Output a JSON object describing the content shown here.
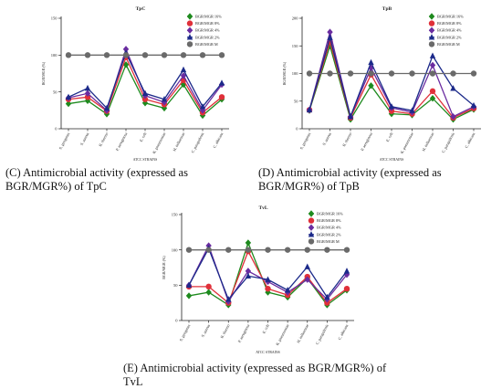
{
  "figure": {
    "captions": [
      "(C) Antimicrobial activity (expressed as BGR/MGR%) of TpC",
      "(D) Antimicrobial activity (expressed as BGR/MGR%) of TpB",
      "(E) Antimicrobial activity (expressed as BGR/MGR%) of TvL"
    ]
  },
  "chart_data": [
    {
      "type": "line",
      "title": "TpC",
      "ylabel": "BGR/MGR (%)",
      "xlabel": "ATCC STRAINS",
      "ylim": [
        0,
        150
      ],
      "yticks": [
        0,
        50,
        100,
        150
      ],
      "grid": false,
      "legend_position": "top-right",
      "categories": [
        "S. pyogenes",
        "S. aureus",
        "B. thermo",
        "P. aeruginosa",
        "E. coli",
        "K. pneumoniae",
        "H. influenzae",
        "C. parapsilosis",
        "C. albicans"
      ],
      "series": [
        {
          "name": "BGR/MGR 16%",
          "color": "#1e8a1e",
          "marker": "diamond",
          "values": [
            34,
            38,
            20,
            87,
            35,
            28,
            60,
            18,
            40
          ]
        },
        {
          "name": "BGR/MGR 8%",
          "color": "#e0303a",
          "marker": "circle",
          "values": [
            40,
            43,
            24,
            97,
            40,
            33,
            66,
            22,
            43
          ]
        },
        {
          "name": "BGR/MGR 4%",
          "color": "#6a2ca0",
          "marker": "diamond",
          "values": [
            42,
            48,
            25,
            108,
            45,
            36,
            72,
            25,
            60
          ]
        },
        {
          "name": "BGR/MGR 2%",
          "color": "#1c2a8a",
          "marker": "triangle",
          "values": [
            43,
            55,
            28,
            103,
            48,
            40,
            80,
            30,
            62
          ]
        },
        {
          "name": "BGR/MGR M",
          "color": "#6a6a6a",
          "marker": "circle",
          "values": [
            100,
            100,
            100,
            100,
            100,
            100,
            100,
            100,
            100
          ]
        }
      ]
    },
    {
      "type": "line",
      "title": "TpB",
      "ylabel": "BGR/MGR (%)",
      "xlabel": "ATCC STRAINS",
      "ylim": [
        0,
        200
      ],
      "yticks": [
        0,
        50,
        100,
        150,
        200
      ],
      "grid": false,
      "legend_position": "top-right",
      "categories": [
        "S. pyogenes",
        "S. aureus",
        "B. thermo",
        "P. aeruginosa",
        "E. coli",
        "K. pneumoniae",
        "H. influenzae",
        "C. parapsilosis",
        "C. albicans"
      ],
      "series": [
        {
          "name": "BGR/MGR 16%",
          "color": "#1e8a1e",
          "marker": "diamond",
          "values": [
            33,
            150,
            17,
            78,
            27,
            25,
            55,
            17,
            35
          ]
        },
        {
          "name": "BGR/MGR 8%",
          "color": "#e0303a",
          "marker": "circle",
          "values": [
            34,
            158,
            20,
            98,
            32,
            27,
            68,
            20,
            37
          ]
        },
        {
          "name": "BGR/MGR 4%",
          "color": "#6a2ca0",
          "marker": "diamond",
          "values": [
            34,
            175,
            22,
            110,
            38,
            30,
            115,
            22,
            40
          ]
        },
        {
          "name": "BGR/MGR 2%",
          "color": "#1c2a8a",
          "marker": "triangle",
          "values": [
            34,
            165,
            22,
            120,
            40,
            33,
            132,
            73,
            42
          ]
        },
        {
          "name": "BGR/MGR M",
          "color": "#6a6a6a",
          "marker": "circle",
          "values": [
            100,
            100,
            100,
            100,
            100,
            100,
            100,
            100,
            100
          ]
        }
      ]
    },
    {
      "type": "line",
      "title": "TvL",
      "ylabel": "BGR/MGR (%)",
      "xlabel": "ATCC STRAINS",
      "ylim": [
        0,
        150
      ],
      "yticks": [
        0,
        50,
        100,
        150
      ],
      "grid": false,
      "legend_position": "top-right",
      "categories": [
        "S. pyogenes",
        "S. aureus",
        "B. thermo",
        "P. aeruginosa",
        "E. coli",
        "K. pneumoniae",
        "H. influenzae",
        "C. parapsilosis",
        "C. albicans"
      ],
      "series": [
        {
          "name": "BGR/MGR 16%",
          "color": "#1e8a1e",
          "marker": "diamond",
          "values": [
            35,
            40,
            22,
            110,
            40,
            33,
            60,
            22,
            43
          ]
        },
        {
          "name": "BGR/MGR 8%",
          "color": "#e0303a",
          "marker": "circle",
          "values": [
            48,
            48,
            25,
            98,
            45,
            36,
            62,
            25,
            45
          ]
        },
        {
          "name": "BGR/MGR 4%",
          "color": "#6a2ca0",
          "marker": "diamond",
          "values": [
            50,
            106,
            27,
            70,
            55,
            40,
            58,
            30,
            65
          ]
        },
        {
          "name": "BGR/MGR 2%",
          "color": "#1c2a8a",
          "marker": "triangle",
          "values": [
            50,
            102,
            30,
            63,
            58,
            43,
            76,
            33,
            70
          ]
        },
        {
          "name": "BGR/MGR M",
          "color": "#6a6a6a",
          "marker": "circle",
          "values": [
            100,
            100,
            100,
            100,
            100,
            100,
            100,
            100,
            100
          ]
        }
      ]
    }
  ]
}
